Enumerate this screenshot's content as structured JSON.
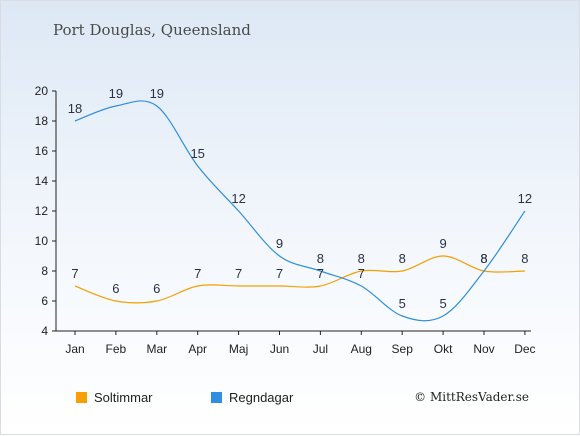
{
  "title": "Port Douglas, Queensland",
  "copyright": "© MittResVader.se",
  "colors": {
    "sun": "#f5a000",
    "rain": "#2e8fe0"
  },
  "chart_data": {
    "type": "line",
    "categories": [
      "Jan",
      "Feb",
      "Mar",
      "Apr",
      "Maj",
      "Jun",
      "Jul",
      "Aug",
      "Sep",
      "Okt",
      "Nov",
      "Dec"
    ],
    "ylim": [
      4,
      20
    ],
    "yticks": [
      4,
      6,
      8,
      10,
      12,
      14,
      16,
      18,
      20
    ],
    "series": [
      {
        "name": "Soltimmar",
        "values": [
          7,
          6,
          6,
          7,
          7,
          7,
          7,
          8,
          8,
          9,
          8,
          8
        ]
      },
      {
        "name": "Regndagar",
        "values": [
          18,
          19,
          19,
          15,
          12,
          9,
          8,
          7,
          5,
          5,
          8,
          12
        ]
      }
    ]
  }
}
